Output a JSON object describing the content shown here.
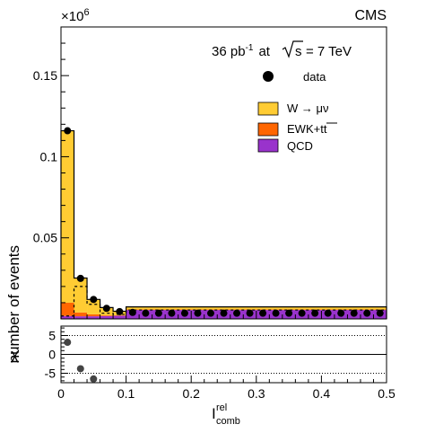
{
  "chart_data": {
    "type": "bar",
    "experiment": "CMS",
    "title_lumi": "36 pb",
    "title_lumi_exp": "-1",
    "title_at": "at",
    "title_sqrt": "s",
    "title_energy": "= 7 TeV",
    "exponent_label": "×10",
    "exponent_power": "6",
    "ylabel": "number of events",
    "xlabel": "I",
    "xlabel_sup": "rel",
    "xlabel_sub": "comb",
    "xlim": [
      0,
      0.5
    ],
    "ylim": [
      0,
      0.18
    ],
    "yticks": [
      0.05,
      0.1,
      0.15
    ],
    "ytick_labels": [
      "0.05",
      "0.1",
      "0.15"
    ],
    "xticks": [
      0,
      0.1,
      0.2,
      0.3,
      0.4,
      0.5
    ],
    "xtick_labels": [
      "0",
      "0.1",
      "0.2",
      "0.3",
      "0.4",
      "0.5"
    ],
    "bin_edges": [
      0,
      0.02,
      0.04,
      0.06,
      0.08,
      0.1,
      0.5
    ],
    "stack": [
      {
        "name": "QCD",
        "color": "#9933cc",
        "values": [
          0.0018,
          0.0016,
          0.0016,
          0.0018,
          0.002,
          0.0055
        ]
      },
      {
        "name": "EWK+tt",
        "color": "#ff6600",
        "values": [
          0.0082,
          0.0024,
          0.0012,
          0.0004,
          0.0002,
          0.0003
        ]
      },
      {
        "name": "W → μν",
        "color": "#ffcc33",
        "values": [
          0.106,
          0.0212,
          0.0092,
          0.0048,
          0.0025,
          0.0016
        ]
      }
    ],
    "qcd_dashed": [
      0.0018,
      0.02,
      0.009,
      0.0035,
      0.0028,
      0.0055
    ],
    "data": {
      "name": "data",
      "x": [
        0.01,
        0.03,
        0.05,
        0.07,
        0.09,
        0.11,
        0.13,
        0.15,
        0.17,
        0.19,
        0.21,
        0.23,
        0.25,
        0.27,
        0.29,
        0.31,
        0.33,
        0.35,
        0.37,
        0.39,
        0.41,
        0.43,
        0.45,
        0.47,
        0.49
      ],
      "y": [
        0.116,
        0.025,
        0.012,
        0.0065,
        0.0045,
        0.004,
        0.0035,
        0.0035,
        0.0035,
        0.0035,
        0.0035,
        0.0035,
        0.0035,
        0.0035,
        0.0035,
        0.0035,
        0.0035,
        0.0035,
        0.0035,
        0.0035,
        0.0035,
        0.0035,
        0.0035,
        0.0035,
        0.0035
      ]
    },
    "legend": [
      {
        "label": "data",
        "marker": "dot"
      },
      {
        "label": "W → μν",
        "color": "#ffcc33"
      },
      {
        "label": "EWK+tt",
        "color": "#ff6600"
      },
      {
        "label": "QCD",
        "color": "#9933cc"
      }
    ],
    "ratio": {
      "ylabel": "χ",
      "ylim": [
        -7.5,
        7.5
      ],
      "yticks": [
        5,
        0,
        -5
      ],
      "ytick_labels": [
        "5",
        "0",
        "-5"
      ],
      "x": [
        0.01,
        0.03,
        0.05
      ],
      "y": [
        3.2,
        -3.8,
        -6.5
      ]
    }
  }
}
